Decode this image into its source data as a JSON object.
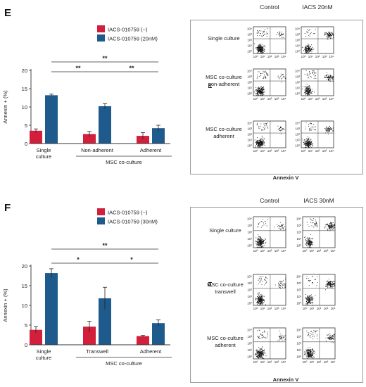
{
  "panels": [
    {
      "letter": "E",
      "chart_data": {
        "type": "bar",
        "ylabel": "Annexin + (%)",
        "ylim": [
          0,
          20
        ],
        "yticks": [
          0,
          5,
          10,
          15,
          20
        ],
        "categories": [
          "Single culture",
          "Non-adherent",
          "Adherent"
        ],
        "group_label": "MSC co-culture",
        "series": [
          {
            "name": "IACS-010759 (−)",
            "color": "#d21f3c",
            "values": [
              3.5,
              2.6,
              2.1
            ],
            "errors": [
              0.5,
              0.7,
              0.9
            ]
          },
          {
            "name": "IACS-010759 (20nM)",
            "color": "#1f5a8c",
            "values": [
              13.2,
              10.2,
              4.2
            ],
            "errors": [
              0.3,
              0.7,
              0.8
            ]
          }
        ],
        "significance": [
          "**",
          "**",
          "**"
        ]
      },
      "flow": {
        "col_labels": [
          "Control",
          "IACS 20nM"
        ],
        "row_labels": [
          [
            "Single culture"
          ],
          [
            "MSC co-culture",
            "non-adherent"
          ],
          [
            "MSC co-culture",
            "adherent"
          ]
        ],
        "x_axis": "Annexin V",
        "y_axis": "PI"
      }
    },
    {
      "letter": "F",
      "chart_data": {
        "type": "bar",
        "ylabel": "Annexin + (%)",
        "ylim": [
          0,
          20
        ],
        "yticks": [
          0,
          5,
          10,
          15,
          20
        ],
        "categories": [
          "Single culture",
          "Transwell",
          "Adherent"
        ],
        "group_label": "MSC co-culture",
        "series": [
          {
            "name": "IACS-010759 (−)",
            "color": "#d21f3c",
            "values": [
              3.8,
              4.6,
              2.2
            ],
            "errors": [
              0.8,
              1.4,
              0.2
            ]
          },
          {
            "name": "IACS-010759 (30nM)",
            "color": "#1f5a8c",
            "values": [
              18.2,
              11.8,
              5.5
            ],
            "errors": [
              1.1,
              2.8,
              0.8
            ]
          }
        ],
        "significance": [
          "**",
          "*",
          "*"
        ]
      },
      "flow": {
        "col_labels": [
          "Control",
          "IACS 30nM"
        ],
        "row_labels": [
          [
            "Single culture"
          ],
          [
            "MSC co-culture",
            "transwell"
          ],
          [
            "MSC co-culture",
            "adherent"
          ]
        ],
        "x_axis": "Annexin V",
        "y_axis": "PI"
      }
    }
  ],
  "flow_ticks": [
    "10⁰",
    "10¹",
    "10²",
    "10³",
    "10⁴"
  ]
}
